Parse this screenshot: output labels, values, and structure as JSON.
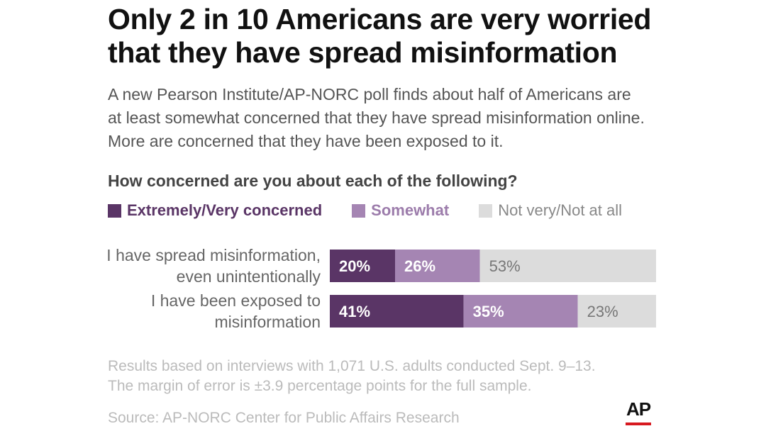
{
  "title": "Only 2 in 10 Americans are very worried\nthat they have spread misinformation",
  "subtitle": "A new Pearson Institute/AP-NORC poll finds about half of Americans are\nat least somewhat concerned that they have spread misinformation online.\nMore are concerned that they have been exposed to it.",
  "question": "How concerned are you about each of the following?",
  "colors": {
    "extremely": "#5a3566",
    "somewhat": "#a585b3",
    "not": "#dcdcdc"
  },
  "legend": [
    {
      "label": "Extremely/Very concerned",
      "color": "#5a3566",
      "text_color": "#5a3566"
    },
    {
      "label": "Somewhat",
      "color": "#a585b3",
      "text_color": "#9c7cab"
    },
    {
      "label": "Not very/Not at all",
      "color": "#dcdcdc",
      "text_color": "#888888"
    }
  ],
  "chart_data": {
    "type": "bar",
    "orientation": "horizontal",
    "stacked": true,
    "categories": [
      [
        "I have spread misinformation,",
        "even unintentionally"
      ],
      [
        "I have been exposed to",
        "misinformation"
      ]
    ],
    "series": [
      {
        "name": "Extremely/Very concerned",
        "values": [
          20,
          41
        ],
        "labels": [
          "20%",
          "41%"
        ]
      },
      {
        "name": "Somewhat",
        "values": [
          26,
          35
        ],
        "labels": [
          "26%",
          "35%"
        ]
      },
      {
        "name": "Not very/Not at all",
        "values": [
          53,
          23
        ],
        "labels": [
          "53%",
          "23%"
        ]
      }
    ],
    "xlim": [
      0,
      100
    ],
    "grid": false,
    "legend_position": "top"
  },
  "note": "Results based on interviews with 1,071 U.S. adults conducted Sept. 9–13.\nThe margin of error is ±3.9 percentage points for the full sample.",
  "source": "Source: AP-NORC Center for Public Affairs Research",
  "logo": "AP"
}
